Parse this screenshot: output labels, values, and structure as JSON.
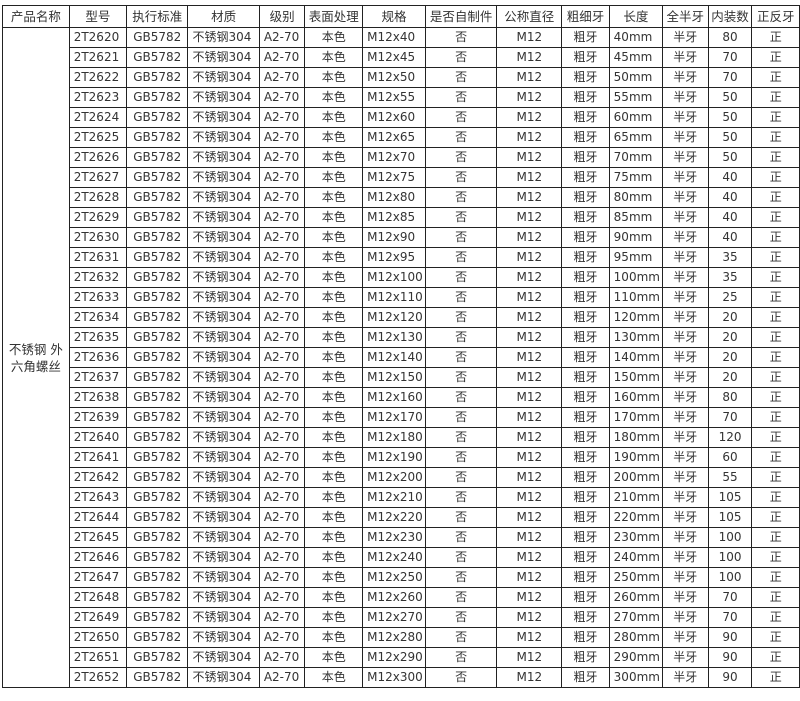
{
  "table": {
    "headers": [
      "产品名称",
      "型号",
      "执行标准",
      "材质",
      "级别",
      "表面处理",
      "规格",
      "是否自制件",
      "公称直径",
      "粗细牙",
      "长度",
      "全半牙",
      "内装数",
      "正反牙"
    ],
    "product_name": "不锈钢 外六角螺丝",
    "rows": [
      [
        "2T2620",
        "GB5782",
        "不锈钢304",
        "A2-70",
        "本色",
        "M12x40",
        "否",
        "M12",
        "粗牙",
        "40mm",
        "半牙",
        "80",
        "正"
      ],
      [
        "2T2621",
        "GB5782",
        "不锈钢304",
        "A2-70",
        "本色",
        "M12x45",
        "否",
        "M12",
        "粗牙",
        "45mm",
        "半牙",
        "70",
        "正"
      ],
      [
        "2T2622",
        "GB5782",
        "不锈钢304",
        "A2-70",
        "本色",
        "M12x50",
        "否",
        "M12",
        "粗牙",
        "50mm",
        "半牙",
        "70",
        "正"
      ],
      [
        "2T2623",
        "GB5782",
        "不锈钢304",
        "A2-70",
        "本色",
        "M12x55",
        "否",
        "M12",
        "粗牙",
        "55mm",
        "半牙",
        "50",
        "正"
      ],
      [
        "2T2624",
        "GB5782",
        "不锈钢304",
        "A2-70",
        "本色",
        "M12x60",
        "否",
        "M12",
        "粗牙",
        "60mm",
        "半牙",
        "50",
        "正"
      ],
      [
        "2T2625",
        "GB5782",
        "不锈钢304",
        "A2-70",
        "本色",
        "M12x65",
        "否",
        "M12",
        "粗牙",
        "65mm",
        "半牙",
        "50",
        "正"
      ],
      [
        "2T2626",
        "GB5782",
        "不锈钢304",
        "A2-70",
        "本色",
        "M12x70",
        "否",
        "M12",
        "粗牙",
        "70mm",
        "半牙",
        "50",
        "正"
      ],
      [
        "2T2627",
        "GB5782",
        "不锈钢304",
        "A2-70",
        "本色",
        "M12x75",
        "否",
        "M12",
        "粗牙",
        "75mm",
        "半牙",
        "40",
        "正"
      ],
      [
        "2T2628",
        "GB5782",
        "不锈钢304",
        "A2-70",
        "本色",
        "M12x80",
        "否",
        "M12",
        "粗牙",
        "80mm",
        "半牙",
        "40",
        "正"
      ],
      [
        "2T2629",
        "GB5782",
        "不锈钢304",
        "A2-70",
        "本色",
        "M12x85",
        "否",
        "M12",
        "粗牙",
        "85mm",
        "半牙",
        "40",
        "正"
      ],
      [
        "2T2630",
        "GB5782",
        "不锈钢304",
        "A2-70",
        "本色",
        "M12x90",
        "否",
        "M12",
        "粗牙",
        "90mm",
        "半牙",
        "40",
        "正"
      ],
      [
        "2T2631",
        "GB5782",
        "不锈钢304",
        "A2-70",
        "本色",
        "M12x95",
        "否",
        "M12",
        "粗牙",
        "95mm",
        "半牙",
        "35",
        "正"
      ],
      [
        "2T2632",
        "GB5782",
        "不锈钢304",
        "A2-70",
        "本色",
        "M12x100",
        "否",
        "M12",
        "粗牙",
        "100mm",
        "半牙",
        "35",
        "正"
      ],
      [
        "2T2633",
        "GB5782",
        "不锈钢304",
        "A2-70",
        "本色",
        "M12x110",
        "否",
        "M12",
        "粗牙",
        "110mm",
        "半牙",
        "25",
        "正"
      ],
      [
        "2T2634",
        "GB5782",
        "不锈钢304",
        "A2-70",
        "本色",
        "M12x120",
        "否",
        "M12",
        "粗牙",
        "120mm",
        "半牙",
        "20",
        "正"
      ],
      [
        "2T2635",
        "GB5782",
        "不锈钢304",
        "A2-70",
        "本色",
        "M12x130",
        "否",
        "M12",
        "粗牙",
        "130mm",
        "半牙",
        "20",
        "正"
      ],
      [
        "2T2636",
        "GB5782",
        "不锈钢304",
        "A2-70",
        "本色",
        "M12x140",
        "否",
        "M12",
        "粗牙",
        "140mm",
        "半牙",
        "20",
        "正"
      ],
      [
        "2T2637",
        "GB5782",
        "不锈钢304",
        "A2-70",
        "本色",
        "M12x150",
        "否",
        "M12",
        "粗牙",
        "150mm",
        "半牙",
        "20",
        "正"
      ],
      [
        "2T2638",
        "GB5782",
        "不锈钢304",
        "A2-70",
        "本色",
        "M12x160",
        "否",
        "M12",
        "粗牙",
        "160mm",
        "半牙",
        "80",
        "正"
      ],
      [
        "2T2639",
        "GB5782",
        "不锈钢304",
        "A2-70",
        "本色",
        "M12x170",
        "否",
        "M12",
        "粗牙",
        "170mm",
        "半牙",
        "70",
        "正"
      ],
      [
        "2T2640",
        "GB5782",
        "不锈钢304",
        "A2-70",
        "本色",
        "M12x180",
        "否",
        "M12",
        "粗牙",
        "180mm",
        "半牙",
        "120",
        "正"
      ],
      [
        "2T2641",
        "GB5782",
        "不锈钢304",
        "A2-70",
        "本色",
        "M12x190",
        "否",
        "M12",
        "粗牙",
        "190mm",
        "半牙",
        "60",
        "正"
      ],
      [
        "2T2642",
        "GB5782",
        "不锈钢304",
        "A2-70",
        "本色",
        "M12x200",
        "否",
        "M12",
        "粗牙",
        "200mm",
        "半牙",
        "55",
        "正"
      ],
      [
        "2T2643",
        "GB5782",
        "不锈钢304",
        "A2-70",
        "本色",
        "M12x210",
        "否",
        "M12",
        "粗牙",
        "210mm",
        "半牙",
        "105",
        "正"
      ],
      [
        "2T2644",
        "GB5782",
        "不锈钢304",
        "A2-70",
        "本色",
        "M12x220",
        "否",
        "M12",
        "粗牙",
        "220mm",
        "半牙",
        "105",
        "正"
      ],
      [
        "2T2645",
        "GB5782",
        "不锈钢304",
        "A2-70",
        "本色",
        "M12x230",
        "否",
        "M12",
        "粗牙",
        "230mm",
        "半牙",
        "100",
        "正"
      ],
      [
        "2T2646",
        "GB5782",
        "不锈钢304",
        "A2-70",
        "本色",
        "M12x240",
        "否",
        "M12",
        "粗牙",
        "240mm",
        "半牙",
        "100",
        "正"
      ],
      [
        "2T2647",
        "GB5782",
        "不锈钢304",
        "A2-70",
        "本色",
        "M12x250",
        "否",
        "M12",
        "粗牙",
        "250mm",
        "半牙",
        "100",
        "正"
      ],
      [
        "2T2648",
        "GB5782",
        "不锈钢304",
        "A2-70",
        "本色",
        "M12x260",
        "否",
        "M12",
        "粗牙",
        "260mm",
        "半牙",
        "70",
        "正"
      ],
      [
        "2T2649",
        "GB5782",
        "不锈钢304",
        "A2-70",
        "本色",
        "M12x270",
        "否",
        "M12",
        "粗牙",
        "270mm",
        "半牙",
        "70",
        "正"
      ],
      [
        "2T2650",
        "GB5782",
        "不锈钢304",
        "A2-70",
        "本色",
        "M12x280",
        "否",
        "M12",
        "粗牙",
        "280mm",
        "半牙",
        "90",
        "正"
      ],
      [
        "2T2651",
        "GB5782",
        "不锈钢304",
        "A2-70",
        "本色",
        "M12x290",
        "否",
        "M12",
        "粗牙",
        "290mm",
        "半牙",
        "90",
        "正"
      ],
      [
        "2T2652",
        "GB5782",
        "不锈钢304",
        "A2-70",
        "本色",
        "M12x300",
        "否",
        "M12",
        "粗牙",
        "300mm",
        "半牙",
        "90",
        "正"
      ]
    ]
  }
}
